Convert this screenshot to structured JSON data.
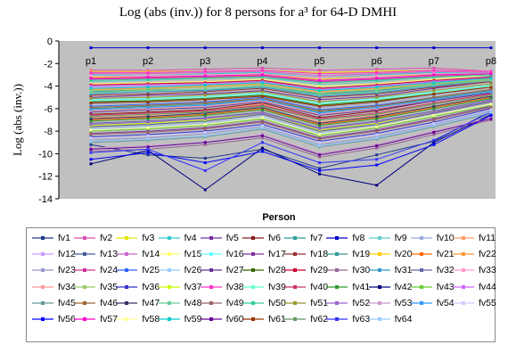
{
  "chart_data": {
    "type": "line",
    "title": "Log (abs (inv.)) for 8 persons for a³ for 64-D DMHI",
    "xlabel": "Person",
    "ylabel": "Log (abs (inv.))",
    "categories": [
      "p1",
      "p2",
      "p3",
      "p4",
      "p5",
      "p6",
      "p7",
      "p8"
    ],
    "ylim": [
      -14,
      0
    ],
    "yticks": [
      0,
      -2,
      -4,
      -6,
      -8,
      -10,
      -12,
      -14
    ],
    "plot_background": "#c0c0c0",
    "grid": false,
    "legend_position": "bottom",
    "series": [
      {
        "name": "fv1",
        "color": "#1f3a8a",
        "values": [
          -9.2,
          -10.1,
          -10.4,
          -9.6,
          -11.3,
          -10.1,
          -8.9,
          -6.2
        ]
      },
      {
        "name": "fv2",
        "color": "#d94fb2",
        "values": [
          -2.6,
          -2.6,
          -2.5,
          -2.4,
          -2.6,
          -2.5,
          -2.4,
          -2.7
        ]
      },
      {
        "name": "fv3",
        "color": "#e6e600",
        "values": [
          -3.2,
          -3.2,
          -3.3,
          -3.0,
          -3.4,
          -3.1,
          -3.0,
          -2.9
        ]
      },
      {
        "name": "fv4",
        "color": "#33cccc",
        "values": [
          -3.0,
          -3.1,
          -2.9,
          -2.8,
          -3.3,
          -3.0,
          -2.8,
          -2.9
        ]
      },
      {
        "name": "fv5",
        "color": "#7030a0",
        "values": [
          -5.0,
          -4.8,
          -4.7,
          -4.4,
          -5.2,
          -4.9,
          -4.2,
          -3.6
        ]
      },
      {
        "name": "fv6",
        "color": "#8b1a1a",
        "values": [
          -6.5,
          -6.3,
          -6.1,
          -5.5,
          -6.8,
          -6.2,
          -5.3,
          -4.6
        ]
      },
      {
        "name": "fv7",
        "color": "#2f9d9d",
        "values": [
          -4.5,
          -4.3,
          -4.4,
          -4.0,
          -4.7,
          -4.4,
          -3.9,
          -3.4
        ]
      },
      {
        "name": "fv8",
        "color": "#0000cc",
        "values": [
          -0.6,
          -0.6,
          -0.6,
          -0.6,
          -0.6,
          -0.6,
          -0.6,
          -0.6
        ]
      },
      {
        "name": "fv9",
        "color": "#66cccc",
        "values": [
          -3.6,
          -3.5,
          -3.3,
          -3.2,
          -3.9,
          -3.6,
          -3.1,
          -3.1
        ]
      },
      {
        "name": "fv10",
        "color": "#99aadd",
        "values": [
          -5.6,
          -5.4,
          -5.2,
          -4.9,
          -5.9,
          -5.5,
          -4.8,
          -4.1
        ]
      },
      {
        "name": "fv11",
        "color": "#ff9966",
        "values": [
          -6.8,
          -6.6,
          -6.2,
          -5.6,
          -7.2,
          -6.6,
          -5.6,
          -4.8
        ]
      },
      {
        "name": "fv12",
        "color": "#cc99ff",
        "values": [
          -4.1,
          -4.0,
          -3.9,
          -3.7,
          -4.4,
          -4.1,
          -3.6,
          -3.3
        ]
      },
      {
        "name": "fv13",
        "color": "#4a5a9a",
        "values": [
          -7.6,
          -7.4,
          -7.1,
          -6.5,
          -8.0,
          -7.4,
          -6.4,
          -5.4
        ]
      },
      {
        "name": "fv14",
        "color": "#cc66cc",
        "values": [
          -2.9,
          -2.9,
          -2.8,
          -2.7,
          -3.1,
          -2.9,
          -2.7,
          -2.8
        ]
      },
      {
        "name": "fv15",
        "color": "#ffff66",
        "values": [
          -3.8,
          -3.7,
          -3.6,
          -3.4,
          -4.0,
          -3.8,
          -3.4,
          -3.0
        ]
      },
      {
        "name": "fv16",
        "color": "#66ffff",
        "values": [
          -5.2,
          -5.1,
          -4.9,
          -4.6,
          -5.5,
          -5.1,
          -4.5,
          -3.9
        ]
      },
      {
        "name": "fv17",
        "color": "#8033a0",
        "values": [
          -8.2,
          -8.0,
          -7.7,
          -7.1,
          -8.6,
          -7.9,
          -6.9,
          -5.8
        ]
      },
      {
        "name": "fv18",
        "color": "#993333",
        "values": [
          -4.8,
          -4.7,
          -4.5,
          -4.2,
          -5.0,
          -4.7,
          -4.1,
          -3.6
        ]
      },
      {
        "name": "fv19",
        "color": "#339999",
        "values": [
          -6.0,
          -5.8,
          -5.6,
          -5.2,
          -6.3,
          -5.8,
          -5.1,
          -4.4
        ]
      },
      {
        "name": "fv20",
        "color": "#ffcc00",
        "values": [
          -2.7,
          -2.7,
          -2.7,
          -2.6,
          -2.8,
          -2.7,
          -2.6,
          -2.7
        ]
      },
      {
        "name": "fv21",
        "color": "#ff6600",
        "values": [
          -7.0,
          -6.8,
          -6.5,
          -6.0,
          -7.4,
          -6.8,
          -5.9,
          -5.0
        ]
      },
      {
        "name": "fv22",
        "color": "#ff9933",
        "values": [
          -4.3,
          -4.2,
          -4.0,
          -3.8,
          -4.5,
          -4.2,
          -3.8,
          -3.4
        ]
      },
      {
        "name": "fv23",
        "color": "#9999cc",
        "values": [
          -8.8,
          -8.6,
          -8.2,
          -7.6,
          -9.2,
          -8.5,
          -7.4,
          -6.2
        ]
      },
      {
        "name": "fv24",
        "color": "#cc3399",
        "values": [
          -3.4,
          -3.3,
          -3.2,
          -3.1,
          -3.6,
          -3.4,
          -3.1,
          -3.0
        ]
      },
      {
        "name": "fv25",
        "color": "#3366ff",
        "values": [
          -5.8,
          -5.6,
          -5.4,
          -5.0,
          -6.1,
          -5.7,
          -5.0,
          -4.3
        ]
      },
      {
        "name": "fv26",
        "color": "#99ccff",
        "values": [
          -7.8,
          -7.6,
          -7.3,
          -6.7,
          -8.2,
          -7.6,
          -6.6,
          -5.6
        ]
      },
      {
        "name": "fv27",
        "color": "#663399",
        "values": [
          -6.3,
          -6.1,
          -5.9,
          -5.4,
          -6.6,
          -6.1,
          -5.3,
          -4.6
        ]
      },
      {
        "name": "fv28",
        "color": "#336600",
        "values": [
          -5.4,
          -5.3,
          -5.1,
          -4.8,
          -5.7,
          -5.3,
          -4.7,
          -4.0
        ]
      },
      {
        "name": "fv29",
        "color": "#cc0033",
        "values": [
          -3.9,
          -3.8,
          -3.7,
          -3.5,
          -4.2,
          -3.9,
          -3.5,
          -3.2
        ]
      },
      {
        "name": "fv30",
        "color": "#996699",
        "values": [
          -9.8,
          -9.6,
          -9.2,
          -8.6,
          -10.3,
          -9.5,
          -8.3,
          -7.0
        ]
      },
      {
        "name": "fv31",
        "color": "#3399cc",
        "values": [
          -4.7,
          -4.5,
          -4.4,
          -4.1,
          -4.9,
          -4.6,
          -4.0,
          -3.5
        ]
      },
      {
        "name": "fv32",
        "color": "#6666aa",
        "values": [
          -7.3,
          -7.1,
          -6.8,
          -6.3,
          -7.7,
          -7.1,
          -6.2,
          -5.2
        ]
      },
      {
        "name": "fv33",
        "color": "#ff99cc",
        "values": [
          -3.1,
          -3.1,
          -3.0,
          -2.9,
          -3.3,
          -3.1,
          -2.9,
          -2.9
        ]
      },
      {
        "name": "fv34",
        "color": "#ff9999",
        "values": [
          -6.2,
          -6.0,
          -5.8,
          -5.3,
          -6.5,
          -6.0,
          -5.2,
          -4.5
        ]
      },
      {
        "name": "fv35",
        "color": "#99cc66",
        "values": [
          -4.4,
          -4.3,
          -4.1,
          -3.9,
          -4.6,
          -4.3,
          -3.8,
          -3.4
        ]
      },
      {
        "name": "fv36",
        "color": "#3333cc",
        "values": [
          -8.5,
          -8.3,
          -8.0,
          -7.4,
          -8.9,
          -8.2,
          -7.2,
          -6.0
        ]
      },
      {
        "name": "fv37",
        "color": "#ccff00",
        "values": [
          -7.5,
          -7.3,
          -7.0,
          -6.4,
          -7.9,
          -7.3,
          -6.3,
          -5.3
        ]
      },
      {
        "name": "fv38",
        "color": "#ff33cc",
        "values": [
          -2.8,
          -2.8,
          -2.7,
          -2.6,
          -2.9,
          -2.8,
          -2.6,
          -2.7
        ]
      },
      {
        "name": "fv39",
        "color": "#66ffcc",
        "values": [
          -5.3,
          -5.2,
          -5.0,
          -4.7,
          -5.6,
          -5.2,
          -4.6,
          -4.0
        ]
      },
      {
        "name": "fv40",
        "color": "#cc3366",
        "values": [
          -6.6,
          -6.4,
          -6.2,
          -5.7,
          -6.9,
          -6.4,
          -5.5,
          -4.7
        ]
      },
      {
        "name": "fv41",
        "color": "#339933",
        "values": [
          -7.1,
          -6.9,
          -6.6,
          -6.1,
          -7.5,
          -6.9,
          -6.0,
          -5.1
        ]
      },
      {
        "name": "fv42",
        "color": "#000080",
        "values": [
          -10.9,
          -9.7,
          -13.2,
          -9.5,
          -11.8,
          -12.8,
          -9.0,
          -6.5
        ]
      },
      {
        "name": "fv43",
        "color": "#66cc33",
        "values": [
          -8.0,
          -7.8,
          -7.5,
          -6.9,
          -8.4,
          -7.7,
          -6.7,
          -5.7
        ]
      },
      {
        "name": "fv44",
        "color": "#cc66ff",
        "values": [
          -4.0,
          -3.9,
          -3.8,
          -3.6,
          -4.3,
          -4.0,
          -3.6,
          -3.3
        ]
      },
      {
        "name": "fv45",
        "color": "#669999",
        "values": [
          -9.0,
          -8.8,
          -8.5,
          -7.8,
          -9.4,
          -8.7,
          -7.6,
          -6.4
        ]
      },
      {
        "name": "fv46",
        "color": "#996633",
        "values": [
          -5.9,
          -5.7,
          -5.5,
          -5.1,
          -6.2,
          -5.8,
          -5.0,
          -4.3
        ]
      },
      {
        "name": "fv47",
        "color": "#333366",
        "values": [
          -6.9,
          -6.7,
          -6.4,
          -5.9,
          -7.3,
          -6.7,
          -5.8,
          -4.9
        ]
      },
      {
        "name": "fv48",
        "color": "#66cc99",
        "values": [
          -4.6,
          -4.4,
          -4.3,
          -4.0,
          -4.8,
          -4.5,
          -3.9,
          -3.5
        ]
      },
      {
        "name": "fv49",
        "color": "#996666",
        "values": [
          -8.3,
          -8.1,
          -7.8,
          -7.2,
          -8.7,
          -8.0,
          -7.0,
          -5.9
        ]
      },
      {
        "name": "fv50",
        "color": "#33cc99",
        "values": [
          -3.5,
          -3.4,
          -3.3,
          -3.2,
          -3.7,
          -3.5,
          -3.2,
          -3.0
        ]
      },
      {
        "name": "fv51",
        "color": "#999933",
        "values": [
          -5.1,
          -5.0,
          -4.8,
          -4.5,
          -5.4,
          -5.0,
          -4.4,
          -3.8
        ]
      },
      {
        "name": "fv52",
        "color": "#9966cc",
        "values": [
          -7.4,
          -7.2,
          -6.9,
          -6.4,
          -7.8,
          -7.2,
          -6.3,
          -5.3
        ]
      },
      {
        "name": "fv53",
        "color": "#cc99cc",
        "values": [
          -9.5,
          -9.3,
          -9.0,
          -8.3,
          -10.0,
          -9.2,
          -8.0,
          -6.8
        ]
      },
      {
        "name": "fv54",
        "color": "#3399ff",
        "values": [
          -6.1,
          -5.9,
          -5.7,
          -5.2,
          -6.4,
          -5.9,
          -5.2,
          -4.5
        ]
      },
      {
        "name": "fv55",
        "color": "#ccccff",
        "values": [
          -8.6,
          -8.4,
          -8.1,
          -7.5,
          -9.0,
          -8.3,
          -7.3,
          -6.1
        ]
      },
      {
        "name": "fv56",
        "color": "#0000ff",
        "values": [
          -10.5,
          -9.9,
          -10.8,
          -9.8,
          -11.5,
          -11.0,
          -9.2,
          -6.6
        ]
      },
      {
        "name": "fv57",
        "color": "#ff00cc",
        "values": [
          -3.3,
          -3.2,
          -3.1,
          -3.0,
          -3.5,
          -3.3,
          -3.0,
          -2.9
        ]
      },
      {
        "name": "fv58",
        "color": "#ffff99",
        "values": [
          -7.9,
          -7.7,
          -7.4,
          -6.8,
          -8.3,
          -7.6,
          -6.6,
          -5.6
        ]
      },
      {
        "name": "fv59",
        "color": "#00cccc",
        "values": [
          -4.2,
          -4.1,
          -3.9,
          -3.7,
          -4.4,
          -4.1,
          -3.7,
          -3.3
        ]
      },
      {
        "name": "fv60",
        "color": "#660099",
        "values": [
          -9.6,
          -9.4,
          -9.0,
          -8.4,
          -10.1,
          -9.3,
          -8.1,
          -6.9
        ]
      },
      {
        "name": "fv61",
        "color": "#993300",
        "values": [
          -5.5,
          -5.4,
          -5.2,
          -4.9,
          -5.8,
          -5.4,
          -4.7,
          -4.1
        ]
      },
      {
        "name": "fv62",
        "color": "#669966",
        "values": [
          -6.7,
          -6.5,
          -6.3,
          -5.8,
          -7.0,
          -6.5,
          -5.6,
          -4.8
        ]
      },
      {
        "name": "fv63",
        "color": "#3333ff",
        "values": [
          -9.9,
          -9.6,
          -11.5,
          -9.0,
          -10.8,
          -10.5,
          -8.8,
          -6.3
        ]
      },
      {
        "name": "fv64",
        "color": "#99ccff",
        "values": [
          -8.9,
          -8.7,
          -8.4,
          -7.7,
          -9.3,
          -8.6,
          -7.5,
          -6.3
        ]
      }
    ]
  }
}
